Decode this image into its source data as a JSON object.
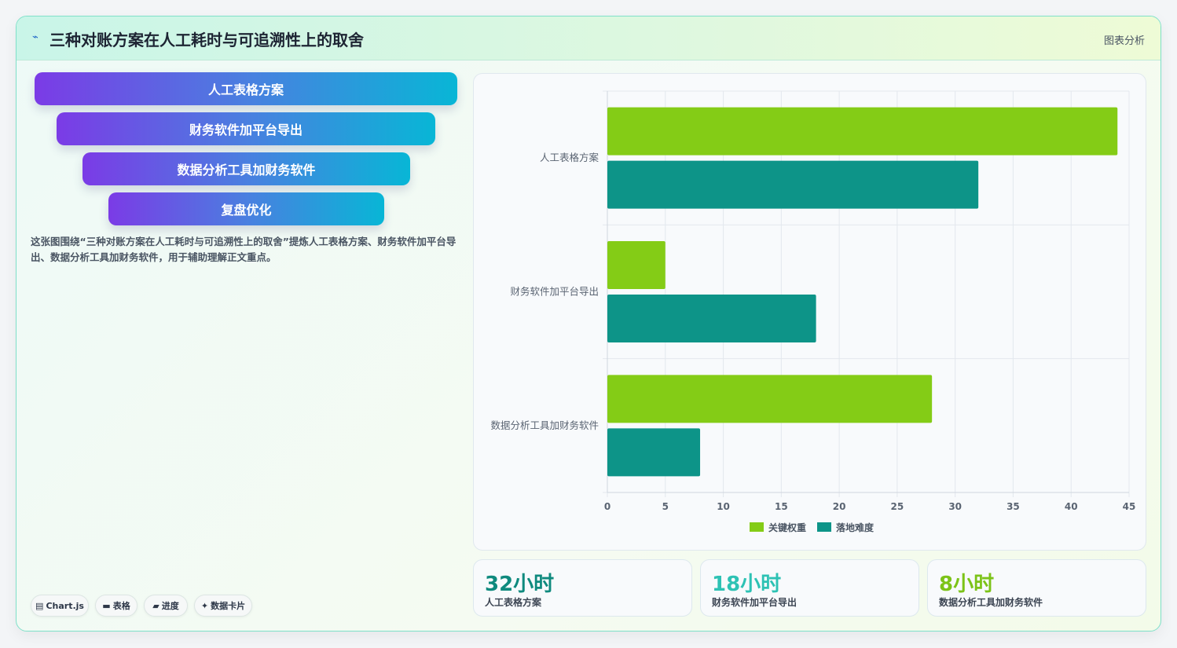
{
  "header": {
    "title": "三种对账方案在人工耗时与可追溯性上的取舍",
    "icon": "chart-line-icon",
    "tag": "图表分析"
  },
  "funnel": {
    "items": [
      "人工表格方案",
      "财务软件加平台导出",
      "数据分析工具加财务软件",
      "复盘优化"
    ]
  },
  "description": "这张图围绕“三种对账方案在人工耗时与可追溯性上的取舍”提炼人工表格方案、财务软件加平台导出、数据分析工具加财务软件，用于辅助理解正文重点。",
  "chips": [
    {
      "icon": "grid-icon",
      "glyph": "▤",
      "label": "Chart.js"
    },
    {
      "icon": "table-icon",
      "glyph": "▬",
      "label": "表格"
    },
    {
      "icon": "progress-icon",
      "glyph": "▰",
      "label": "进度"
    },
    {
      "icon": "sparkle-icon",
      "glyph": "✦",
      "label": "数据卡片"
    }
  ],
  "chart_data": {
    "type": "bar",
    "orientation": "horizontal",
    "categories": [
      "人工表格方案",
      "财务软件加平台导出",
      "数据分析工具加财务软件"
    ],
    "series": [
      {
        "name": "关键权重",
        "values": [
          44,
          5,
          28
        ],
        "color": "#84cc16"
      },
      {
        "name": "落地难度",
        "values": [
          32,
          18,
          8
        ],
        "color": "#0d9488"
      }
    ],
    "xlim": [
      0,
      45
    ],
    "xticks": [
      0,
      5,
      10,
      15,
      20,
      25,
      30,
      35,
      40,
      45
    ],
    "grid": true,
    "legend_position": "bottom"
  },
  "kpis": [
    {
      "value": "32小时",
      "label": "人工表格方案",
      "color": "#0f8a7e"
    },
    {
      "value": "18小时",
      "label": "财务软件加平台导出",
      "color": "#2dc2b4"
    },
    {
      "value": "8小时",
      "label": "数据分析工具加财务软件",
      "color": "#7cc318"
    }
  ]
}
